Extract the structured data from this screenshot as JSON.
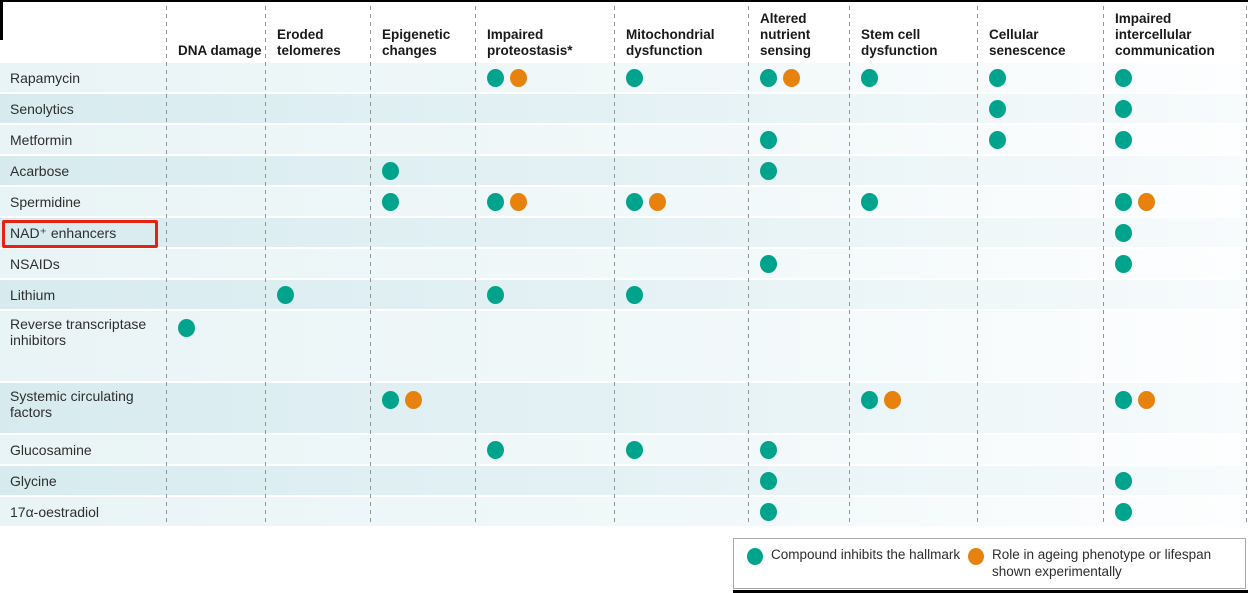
{
  "chart_data": {
    "type": "table",
    "columns": [
      "DNA damage",
      "Eroded telomeres",
      "Epigenetic changes",
      "Impaired proteostasis*",
      "Mitochondrial dysfunction",
      "Altered nutrient sensing",
      "Stem cell dysfunction",
      "Cellular senescence",
      "Impaired intercellular communication"
    ],
    "rows": [
      "Rapamycin",
      "Senolytics",
      "Metformin",
      "Acarbose",
      "Spermidine",
      "NAD⁺ enhancers",
      "NSAIDs",
      "Lithium",
      "Reverse transcriptase inhibitors",
      "Systemic circulating factors",
      "Glucosamine",
      "Glycine",
      "17α-oestradiol"
    ],
    "cell_codes": {
      "t": "compound inhibits the hallmark (teal dot)",
      "to": "inhibits hallmark + role in ageing phenotype or lifespan shown experimentally (teal + orange dots)",
      "": "no dot"
    },
    "cells": [
      [
        "",
        "",
        "",
        "to",
        "t",
        "to",
        "t",
        "t",
        "t"
      ],
      [
        "",
        "",
        "",
        "",
        "",
        "",
        "",
        "t",
        "t"
      ],
      [
        "",
        "",
        "",
        "",
        "",
        "t",
        "",
        "t",
        "t"
      ],
      [
        "",
        "",
        "t",
        "",
        "",
        "t",
        "",
        "",
        ""
      ],
      [
        "",
        "",
        "t",
        "to",
        "to",
        "",
        "t",
        "",
        "to"
      ],
      [
        "",
        "",
        "",
        "",
        "",
        "",
        "",
        "",
        "t"
      ],
      [
        "",
        "",
        "",
        "",
        "",
        "t",
        "",
        "",
        "t"
      ],
      [
        "",
        "t",
        "",
        "t",
        "t",
        "",
        "",
        "",
        ""
      ],
      [
        "t",
        "",
        "",
        "",
        "",
        "",
        "",
        "",
        ""
      ],
      [
        "",
        "",
        "to",
        "",
        "",
        "",
        "to",
        "",
        "to"
      ],
      [
        "",
        "",
        "",
        "t",
        "t",
        "t",
        "",
        "",
        ""
      ],
      [
        "",
        "",
        "",
        "",
        "",
        "t",
        "",
        "",
        "t"
      ],
      [
        "",
        "",
        "",
        "",
        "",
        "t",
        "",
        "",
        "t"
      ]
    ],
    "highlighted_row": "NAD⁺ enhancers",
    "legend_position": "bottom-right"
  },
  "legend": {
    "items": [
      {
        "color": "#00a48c",
        "label": "Compound inhibits the hallmark"
      },
      {
        "color": "#e8820e",
        "label": "Role in ageing phenotype or lifespan shown experimentally"
      }
    ]
  },
  "colors": {
    "inhibit_dot": "#00a48c",
    "experimental_dot": "#e8820e",
    "highlight_box": "#e42313",
    "row_light": "#e9f4f6",
    "row_dark": "#d7ebef"
  }
}
